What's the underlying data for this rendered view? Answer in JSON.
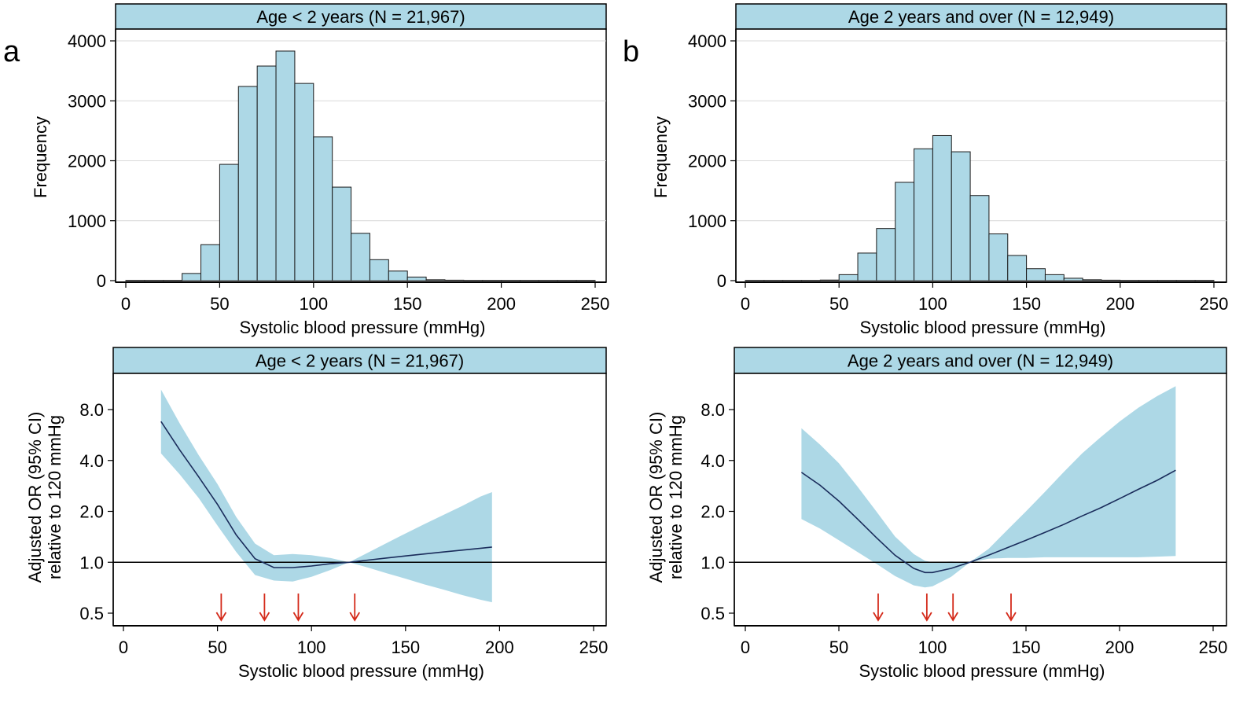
{
  "panel_labels": {
    "a": "a",
    "b": "b"
  },
  "colors": {
    "bar_fill": "#add8e6",
    "band_fill": "#add8e6",
    "line": "#1a2c5b",
    "arrow": "#d42a1a",
    "grid": "#d9d9d9",
    "header_fill": "#add8e6"
  },
  "chart_data": [
    {
      "id": "hist_a",
      "type": "bar",
      "title": "Age < 2 years (N = 21,967)",
      "xlabel": "Systolic blood pressure (mmHg)",
      "ylabel": "Frequency",
      "xlim": [
        0,
        250
      ],
      "ylim": [
        0,
        4000
      ],
      "xticks": [
        0,
        50,
        100,
        150,
        200,
        250
      ],
      "yticks": [
        0,
        1000,
        2000,
        3000,
        4000
      ],
      "xtick_labels": [
        "0",
        "50",
        "100",
        "150",
        "200",
        "250"
      ],
      "ytick_labels": [
        "0",
        "1000",
        "2000",
        "3000",
        "4000"
      ],
      "bin_width": 10,
      "bin_starts": [
        0,
        10,
        20,
        30,
        40,
        50,
        60,
        70,
        80,
        90,
        100,
        110,
        120,
        130,
        140,
        150,
        160,
        170,
        180,
        190,
        200,
        210,
        220,
        230,
        240
      ],
      "values": [
        5,
        5,
        5,
        120,
        600,
        1940,
        3240,
        3580,
        3830,
        3290,
        2400,
        1560,
        790,
        350,
        160,
        60,
        15,
        8,
        5,
        5,
        5,
        5,
        5,
        5,
        5
      ]
    },
    {
      "id": "hist_b",
      "type": "bar",
      "title": "Age 2 years and over (N = 12,949)",
      "xlabel": "Systolic blood pressure (mmHg)",
      "ylabel": "Frequency",
      "xlim": [
        0,
        250
      ],
      "ylim": [
        0,
        4000
      ],
      "xticks": [
        0,
        50,
        100,
        150,
        200,
        250
      ],
      "yticks": [
        0,
        1000,
        2000,
        3000,
        4000
      ],
      "xtick_labels": [
        "0",
        "50",
        "100",
        "150",
        "200",
        "250"
      ],
      "ytick_labels": [
        "0",
        "1000",
        "2000",
        "3000",
        "4000"
      ],
      "bin_width": 10,
      "bin_starts": [
        0,
        10,
        20,
        30,
        40,
        50,
        60,
        70,
        80,
        90,
        100,
        110,
        120,
        130,
        140,
        150,
        160,
        170,
        180,
        190,
        200,
        210,
        220,
        230,
        240
      ],
      "values": [
        5,
        5,
        5,
        5,
        10,
        100,
        460,
        870,
        1640,
        2200,
        2420,
        2150,
        1420,
        780,
        420,
        200,
        100,
        40,
        15,
        8,
        5,
        5,
        5,
        5,
        5
      ]
    },
    {
      "id": "or_a",
      "type": "line",
      "title": "Age < 2 years (N = 21,967)",
      "xlabel": "Systolic blood pressure (mmHg)",
      "ylabel_lines": [
        "Adjusted OR (95% CI)",
        "relative to 120 mmHg"
      ],
      "xlim": [
        0,
        250
      ],
      "ylim": [
        0.42,
        11.5
      ],
      "yscale": "log",
      "xticks": [
        0,
        50,
        100,
        150,
        200,
        250
      ],
      "yticks": [
        0.5,
        1.0,
        2.0,
        4.0,
        8.0
      ],
      "xtick_labels": [
        "0",
        "50",
        "100",
        "150",
        "200",
        "250"
      ],
      "ytick_labels": [
        "0.5",
        "1.0",
        "2.0",
        "4.0",
        "8.0"
      ],
      "reference_line": 1.0,
      "x": [
        20,
        30,
        40,
        50,
        60,
        70,
        80,
        90,
        100,
        110,
        120,
        130,
        140,
        150,
        160,
        170,
        180,
        190,
        196
      ],
      "or": [
        6.8,
        4.6,
        3.2,
        2.2,
        1.45,
        1.05,
        0.93,
        0.93,
        0.95,
        0.98,
        1.0,
        1.03,
        1.06,
        1.09,
        1.12,
        1.15,
        1.18,
        1.21,
        1.23
      ],
      "ci_lower": [
        4.4,
        3.3,
        2.4,
        1.65,
        1.15,
        0.84,
        0.78,
        0.77,
        0.82,
        0.9,
        1.0,
        0.93,
        0.86,
        0.8,
        0.74,
        0.69,
        0.64,
        0.6,
        0.58
      ],
      "ci_upper": [
        10.5,
        6.6,
        4.3,
        2.9,
        1.85,
        1.29,
        1.1,
        1.12,
        1.1,
        1.06,
        1.0,
        1.14,
        1.3,
        1.48,
        1.68,
        1.9,
        2.15,
        2.45,
        2.6
      ],
      "arrows_x": [
        52,
        75,
        93,
        123
      ]
    },
    {
      "id": "or_b",
      "type": "line",
      "title": "Age 2 years and over (N = 12,949)",
      "xlabel": "Systolic blood pressure (mmHg)",
      "ylabel_lines": [
        "Adjusted OR (95% CI)",
        "relative to 120 mmHg"
      ],
      "xlim": [
        0,
        250
      ],
      "ylim": [
        0.42,
        11.5
      ],
      "yscale": "log",
      "xticks": [
        0,
        50,
        100,
        150,
        200,
        250
      ],
      "yticks": [
        0.5,
        1.0,
        2.0,
        4.0,
        8.0
      ],
      "xtick_labels": [
        "0",
        "50",
        "100",
        "150",
        "200",
        "250"
      ],
      "ytick_labels": [
        "0.5",
        "1.0",
        "2.0",
        "4.0",
        "8.0"
      ],
      "reference_line": 1.0,
      "x": [
        30,
        40,
        50,
        60,
        70,
        80,
        90,
        96,
        100,
        110,
        120,
        130,
        140,
        150,
        160,
        170,
        180,
        190,
        200,
        210,
        220,
        230
      ],
      "or": [
        3.4,
        2.85,
        2.3,
        1.8,
        1.4,
        1.1,
        0.92,
        0.87,
        0.87,
        0.92,
        1.0,
        1.1,
        1.22,
        1.35,
        1.5,
        1.67,
        1.88,
        2.1,
        2.38,
        2.7,
        3.05,
        3.5
      ],
      "ci_lower": [
        1.8,
        1.58,
        1.35,
        1.15,
        0.98,
        0.83,
        0.73,
        0.71,
        0.72,
        0.82,
        1.0,
        1.05,
        1.06,
        1.06,
        1.07,
        1.07,
        1.07,
        1.07,
        1.07,
        1.07,
        1.08,
        1.09
      ],
      "ci_upper": [
        6.2,
        4.95,
        3.85,
        2.8,
        2.0,
        1.42,
        1.12,
        1.02,
        1.0,
        1.01,
        1.0,
        1.2,
        1.55,
        2.0,
        2.6,
        3.4,
        4.4,
        5.5,
        6.8,
        8.2,
        9.6,
        11.0
      ],
      "arrows_x": [
        71,
        97,
        111,
        142
      ]
    }
  ]
}
